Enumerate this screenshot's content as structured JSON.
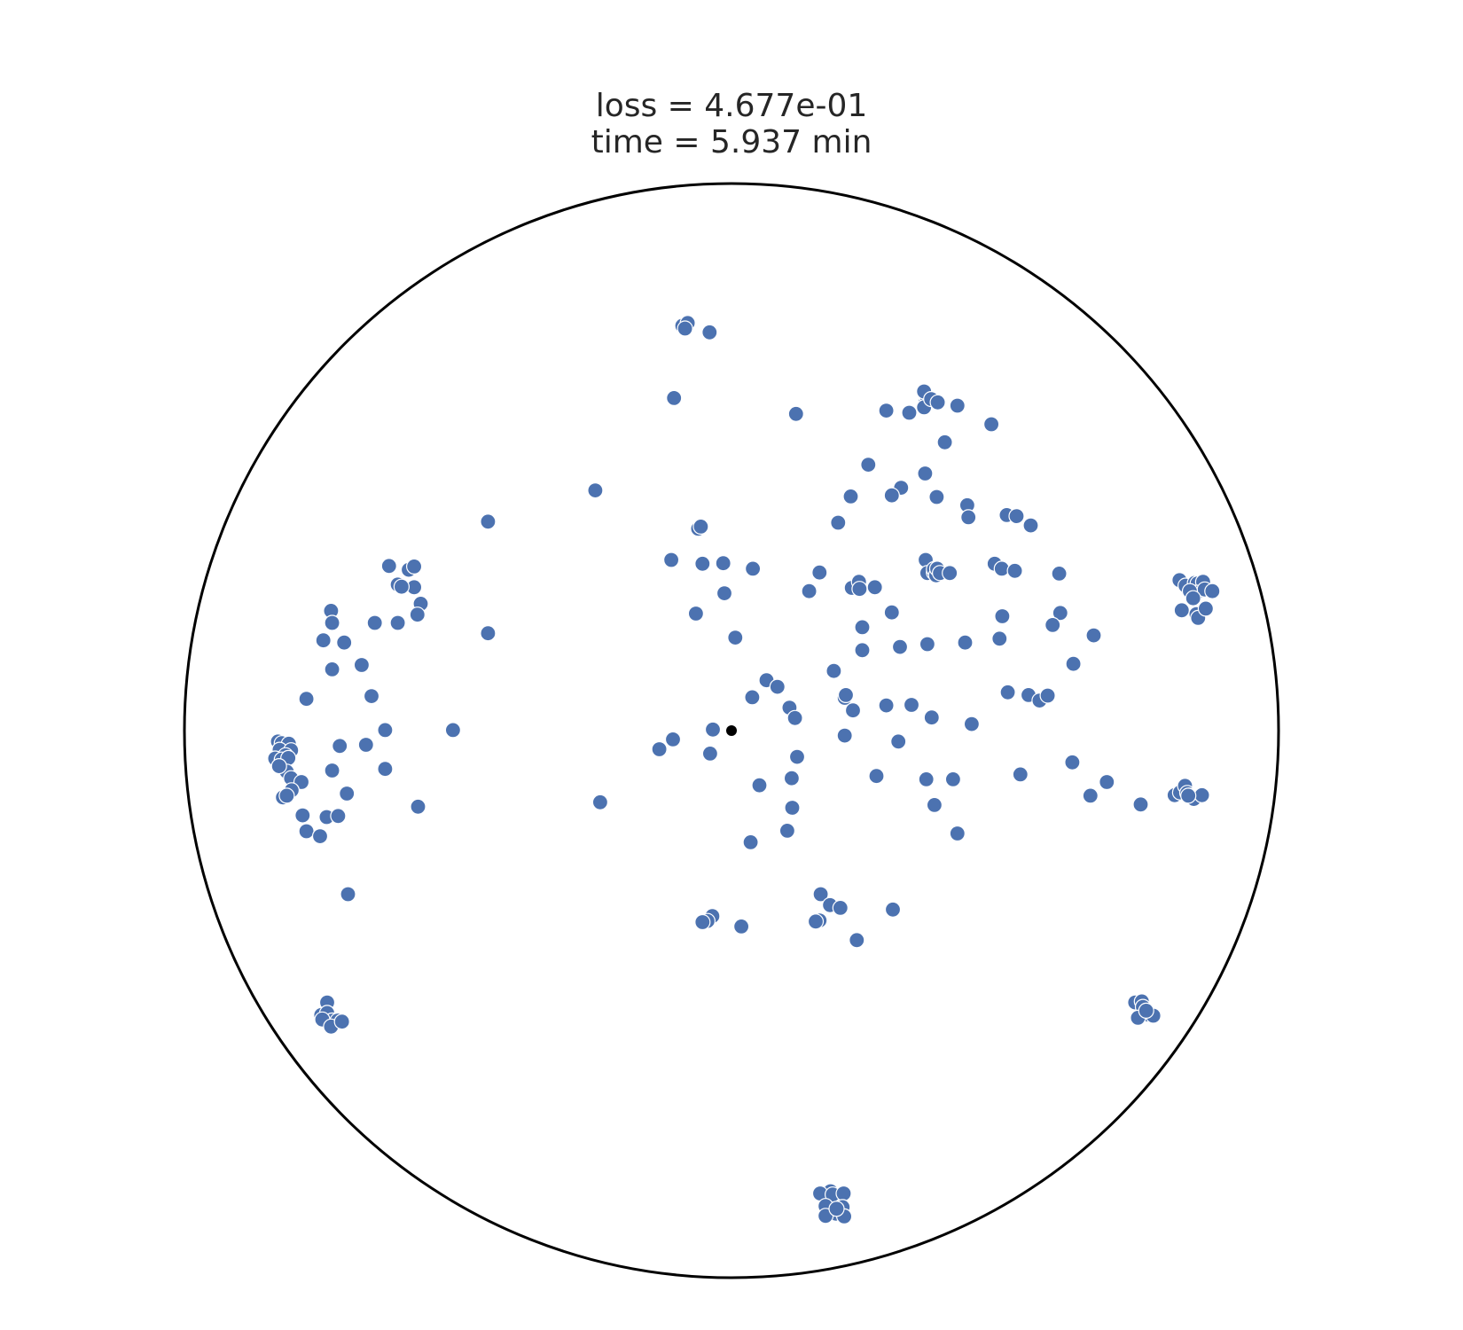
{
  "chart_data": {
    "type": "scatter",
    "title_lines": [
      "loss = 4.677e-01",
      "time = 5.937 min"
    ],
    "xlim": [
      -1,
      1
    ],
    "ylim": [
      -1,
      1
    ],
    "grid": false,
    "boundary": "unit circle",
    "colors": {
      "points": "#4c72b0",
      "point_edge": "#ffffff",
      "origin": "#000000",
      "circle": "#000000"
    },
    "origin": {
      "x": 0.0,
      "y": 0.0
    },
    "series": [
      {
        "points": [
          [
            -0.09,
            0.74
          ],
          [
            -0.08,
            0.745
          ],
          [
            -0.085,
            0.735
          ],
          [
            -0.04,
            0.728
          ],
          [
            -0.105,
            0.608
          ],
          [
            0.118,
            0.579
          ],
          [
            -0.249,
            0.439
          ],
          [
            -0.445,
            0.382
          ],
          [
            -0.445,
            0.178
          ],
          [
            -0.509,
            0.001
          ],
          [
            -0.573,
            -0.139
          ],
          [
            -0.24,
            -0.131
          ],
          [
            0.283,
            0.585
          ],
          [
            0.325,
            0.581
          ],
          [
            0.355,
            0.6
          ],
          [
            0.358,
            0.608
          ],
          [
            0.352,
            0.62
          ],
          [
            0.352,
            0.591
          ],
          [
            0.365,
            0.606
          ],
          [
            0.377,
            0.6
          ],
          [
            0.39,
            0.527
          ],
          [
            0.413,
            0.594
          ],
          [
            0.475,
            0.56
          ],
          [
            0.25,
            0.486
          ],
          [
            0.31,
            0.444
          ],
          [
            0.354,
            0.47
          ],
          [
            0.375,
            0.427
          ],
          [
            0.293,
            0.43
          ],
          [
            0.218,
            0.428
          ],
          [
            0.195,
            0.38
          ],
          [
            0.431,
            0.412
          ],
          [
            0.433,
            0.39
          ],
          [
            0.503,
            0.394
          ],
          [
            0.521,
            0.392
          ],
          [
            0.547,
            0.375
          ],
          [
            -0.061,
            0.369
          ],
          [
            -0.056,
            0.373
          ],
          [
            -0.11,
            0.312
          ],
          [
            -0.053,
            0.305
          ],
          [
            -0.015,
            0.306
          ],
          [
            0.039,
            0.296
          ],
          [
            -0.013,
            0.251
          ],
          [
            -0.065,
            0.214
          ],
          [
            0.007,
            0.17
          ],
          [
            0.161,
            0.289
          ],
          [
            0.22,
            0.261
          ],
          [
            0.233,
            0.272
          ],
          [
            0.234,
            0.259
          ],
          [
            0.142,
            0.255
          ],
          [
            0.262,
            0.262
          ],
          [
            0.293,
            0.216
          ],
          [
            0.239,
            0.189
          ],
          [
            0.355,
            0.312
          ],
          [
            0.358,
            0.288
          ],
          [
            0.37,
            0.289
          ],
          [
            0.37,
            0.295
          ],
          [
            0.374,
            0.284
          ],
          [
            0.376,
            0.296
          ],
          [
            0.381,
            0.288
          ],
          [
            0.399,
            0.288
          ],
          [
            0.239,
            0.147
          ],
          [
            0.308,
            0.153
          ],
          [
            0.358,
            0.158
          ],
          [
            0.187,
            0.109
          ],
          [
            0.427,
            0.161
          ],
          [
            0.481,
            0.305
          ],
          [
            0.494,
            0.296
          ],
          [
            0.518,
            0.292
          ],
          [
            0.495,
            0.209
          ],
          [
            0.49,
            0.168
          ],
          [
            0.599,
            0.287
          ],
          [
            0.601,
            0.215
          ],
          [
            0.587,
            0.193
          ],
          [
            0.662,
            0.174
          ],
          [
            0.625,
            0.122
          ],
          [
            0.064,
            0.092
          ],
          [
            0.084,
            0.08
          ],
          [
            0.038,
            0.061
          ],
          [
            0.207,
            0.06
          ],
          [
            0.209,
            0.065
          ],
          [
            0.329,
            0.047
          ],
          [
            0.283,
            0.046
          ],
          [
            0.222,
            0.037
          ],
          [
            0.106,
            0.042
          ],
          [
            0.366,
            0.024
          ],
          [
            0.116,
            0.023
          ],
          [
            0.439,
            0.012
          ],
          [
            0.505,
            0.07
          ],
          [
            0.543,
            0.065
          ],
          [
            0.563,
            0.055
          ],
          [
            0.578,
            0.064
          ],
          [
            -0.132,
            -0.034
          ],
          [
            -0.107,
            -0.016
          ],
          [
            -0.034,
            0.002
          ],
          [
            -0.039,
            -0.042
          ],
          [
            0.12,
            -0.048
          ],
          [
            0.207,
            -0.009
          ],
          [
            0.305,
            -0.02
          ],
          [
            0.11,
            -0.087
          ],
          [
            0.265,
            -0.083
          ],
          [
            0.356,
            -0.089
          ],
          [
            0.405,
            -0.089
          ],
          [
            0.528,
            -0.08
          ],
          [
            0.623,
            -0.058
          ],
          [
            0.656,
            -0.119
          ],
          [
            0.686,
            -0.094
          ],
          [
            0.748,
            -0.135
          ],
          [
            0.051,
            -0.1
          ],
          [
            0.111,
            -0.141
          ],
          [
            0.102,
            -0.183
          ],
          [
            0.035,
            -0.204
          ],
          [
            0.371,
            -0.136
          ],
          [
            0.413,
            -0.188
          ],
          [
            -0.035,
            -0.339
          ],
          [
            -0.044,
            -0.348
          ],
          [
            -0.053,
            -0.35
          ],
          [
            0.018,
            -0.358
          ],
          [
            0.163,
            -0.299
          ],
          [
            0.18,
            -0.319
          ],
          [
            0.199,
            -0.324
          ],
          [
            0.161,
            -0.347
          ],
          [
            0.154,
            -0.349
          ],
          [
            0.295,
            -0.327
          ],
          [
            0.229,
            -0.383
          ],
          [
            0.819,
            0.275
          ],
          [
            0.83,
            0.265
          ],
          [
            0.847,
            0.27
          ],
          [
            0.852,
            0.269
          ],
          [
            0.862,
            0.272
          ],
          [
            0.85,
            0.252
          ],
          [
            0.865,
            0.258
          ],
          [
            0.838,
            0.255
          ],
          [
            0.844,
            0.242
          ],
          [
            0.823,
            0.22
          ],
          [
            0.85,
            0.213
          ],
          [
            0.853,
            0.206
          ],
          [
            0.867,
            0.223
          ],
          [
            0.879,
            0.255
          ],
          [
            0.81,
            -0.118
          ],
          [
            0.82,
            -0.113
          ],
          [
            0.829,
            -0.101
          ],
          [
            0.833,
            -0.114
          ],
          [
            0.837,
            -0.119
          ],
          [
            0.845,
            -0.125
          ],
          [
            0.86,
            -0.118
          ],
          [
            0.835,
            -0.119
          ],
          [
            0.738,
            -0.497
          ],
          [
            0.75,
            -0.495
          ],
          [
            0.752,
            -0.505
          ],
          [
            0.761,
            -0.519
          ],
          [
            0.771,
            -0.521
          ],
          [
            0.743,
            -0.525
          ],
          [
            0.758,
            -0.512
          ],
          [
            0.189,
            -0.857
          ],
          [
            0.181,
            -0.842
          ],
          [
            0.162,
            -0.846
          ],
          [
            0.185,
            -0.848
          ],
          [
            0.205,
            -0.846
          ],
          [
            0.203,
            -0.871
          ],
          [
            0.172,
            -0.869
          ],
          [
            0.191,
            -0.883
          ],
          [
            0.172,
            -0.887
          ],
          [
            0.206,
            -0.888
          ],
          [
            0.192,
            -0.874
          ],
          [
            -0.739,
            -0.497
          ],
          [
            -0.75,
            -0.52
          ],
          [
            -0.739,
            -0.516
          ],
          [
            -0.73,
            -0.53
          ],
          [
            -0.748,
            -0.528
          ],
          [
            -0.72,
            -0.53
          ],
          [
            -0.732,
            -0.541
          ],
          [
            -0.712,
            -0.532
          ],
          [
            -0.829,
            -0.02
          ],
          [
            -0.822,
            -0.023
          ],
          [
            -0.809,
            -0.024
          ],
          [
            -0.826,
            -0.035
          ],
          [
            -0.805,
            -0.036
          ],
          [
            -0.815,
            -0.045
          ],
          [
            -0.834,
            -0.051
          ],
          [
            -0.822,
            -0.053
          ],
          [
            -0.81,
            -0.05
          ],
          [
            -0.813,
            -0.075
          ],
          [
            -0.827,
            -0.065
          ],
          [
            -0.805,
            -0.087
          ],
          [
            -0.786,
            -0.094
          ],
          [
            -0.804,
            -0.109
          ],
          [
            -0.82,
            -0.122
          ],
          [
            -0.813,
            -0.119
          ],
          [
            -0.777,
            0.058
          ],
          [
            -0.784,
            -0.155
          ],
          [
            -0.777,
            -0.184
          ],
          [
            -0.752,
            -0.193
          ],
          [
            -0.74,
            -0.158
          ],
          [
            -0.719,
            -0.156
          ],
          [
            -0.73,
            -0.073
          ],
          [
            -0.716,
            -0.028
          ],
          [
            -0.703,
            -0.115
          ],
          [
            -0.668,
            -0.026
          ],
          [
            -0.658,
            0.063
          ],
          [
            -0.633,
            0.001
          ],
          [
            -0.633,
            -0.07
          ],
          [
            -0.732,
            0.219
          ],
          [
            -0.73,
            0.197
          ],
          [
            -0.708,
            0.161
          ],
          [
            -0.746,
            0.165
          ],
          [
            -0.73,
            0.112
          ],
          [
            -0.676,
            0.12
          ],
          [
            -0.652,
            0.197
          ],
          [
            -0.61,
            0.197
          ],
          [
            -0.61,
            0.267
          ],
          [
            -0.58,
            0.262
          ],
          [
            -0.568,
            0.232
          ],
          [
            -0.574,
            0.212
          ],
          [
            -0.625,
            0.3
          ],
          [
            -0.626,
            0.301
          ],
          [
            -0.59,
            0.294
          ],
          [
            -0.603,
            0.263
          ],
          [
            -0.58,
            0.3
          ],
          [
            -0.701,
            -0.299
          ]
        ]
      }
    ]
  }
}
